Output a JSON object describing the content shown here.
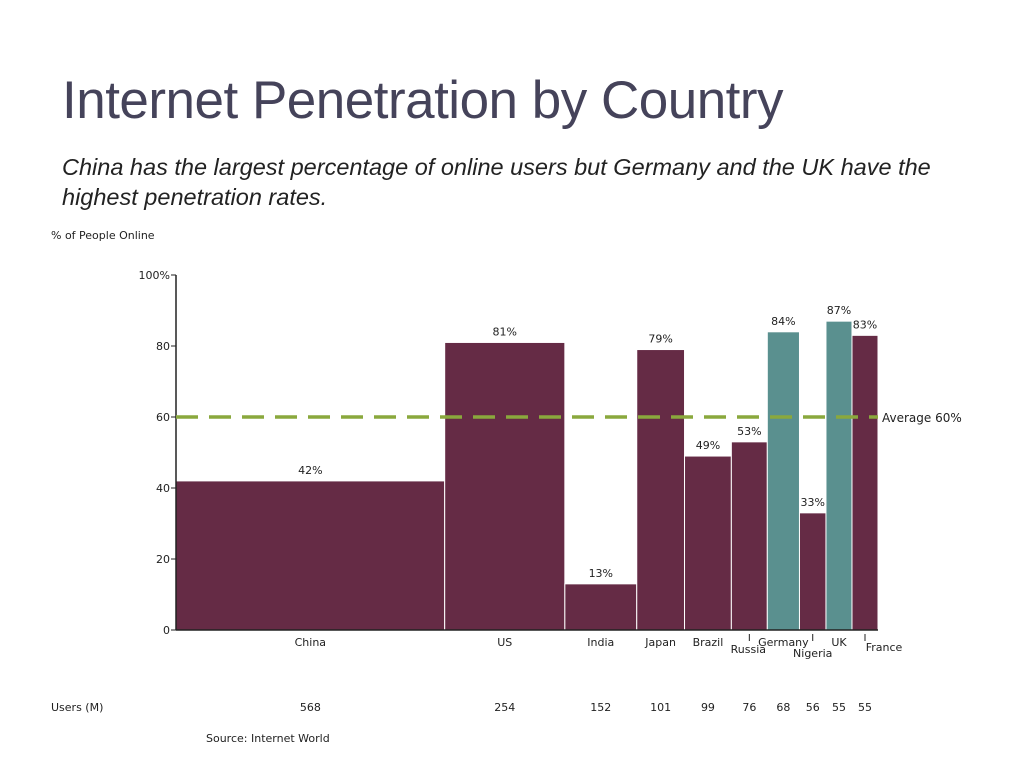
{
  "title": "Internet Penetration by Country",
  "subtitle": "China has the largest percentage of online users but Germany and the UK have the highest penetration rates.",
  "chart_data": {
    "type": "bar",
    "variant": "marimekko (variable-width bars; width proportional to users)",
    "ylabel": "% of People Online",
    "ylim": [
      0,
      100
    ],
    "yticks": [
      "0",
      "20",
      "40",
      "60",
      "80",
      "100%"
    ],
    "categories": [
      "China",
      "US",
      "India",
      "Japan",
      "Brazil",
      "Russia",
      "Germany",
      "Nigeria",
      "UK",
      "France"
    ],
    "values": [
      42,
      81,
      13,
      79,
      49,
      53,
      84,
      33,
      87,
      83
    ],
    "value_labels": [
      "42%",
      "81%",
      "13%",
      "79%",
      "49%",
      "53%",
      "84%",
      "33%",
      "87%",
      "83%"
    ],
    "users_label": "Users (M)",
    "users": [
      568,
      254,
      152,
      101,
      99,
      76,
      68,
      56,
      55,
      55
    ],
    "average": {
      "value": 60,
      "label": "Average 60%"
    },
    "colors": {
      "default": "#652b45",
      "highlight": "#5a908f",
      "average_line": "#8aa83d"
    },
    "highlighted": [
      "Germany",
      "UK"
    ],
    "grid": false,
    "source": "Source: Internet World"
  }
}
